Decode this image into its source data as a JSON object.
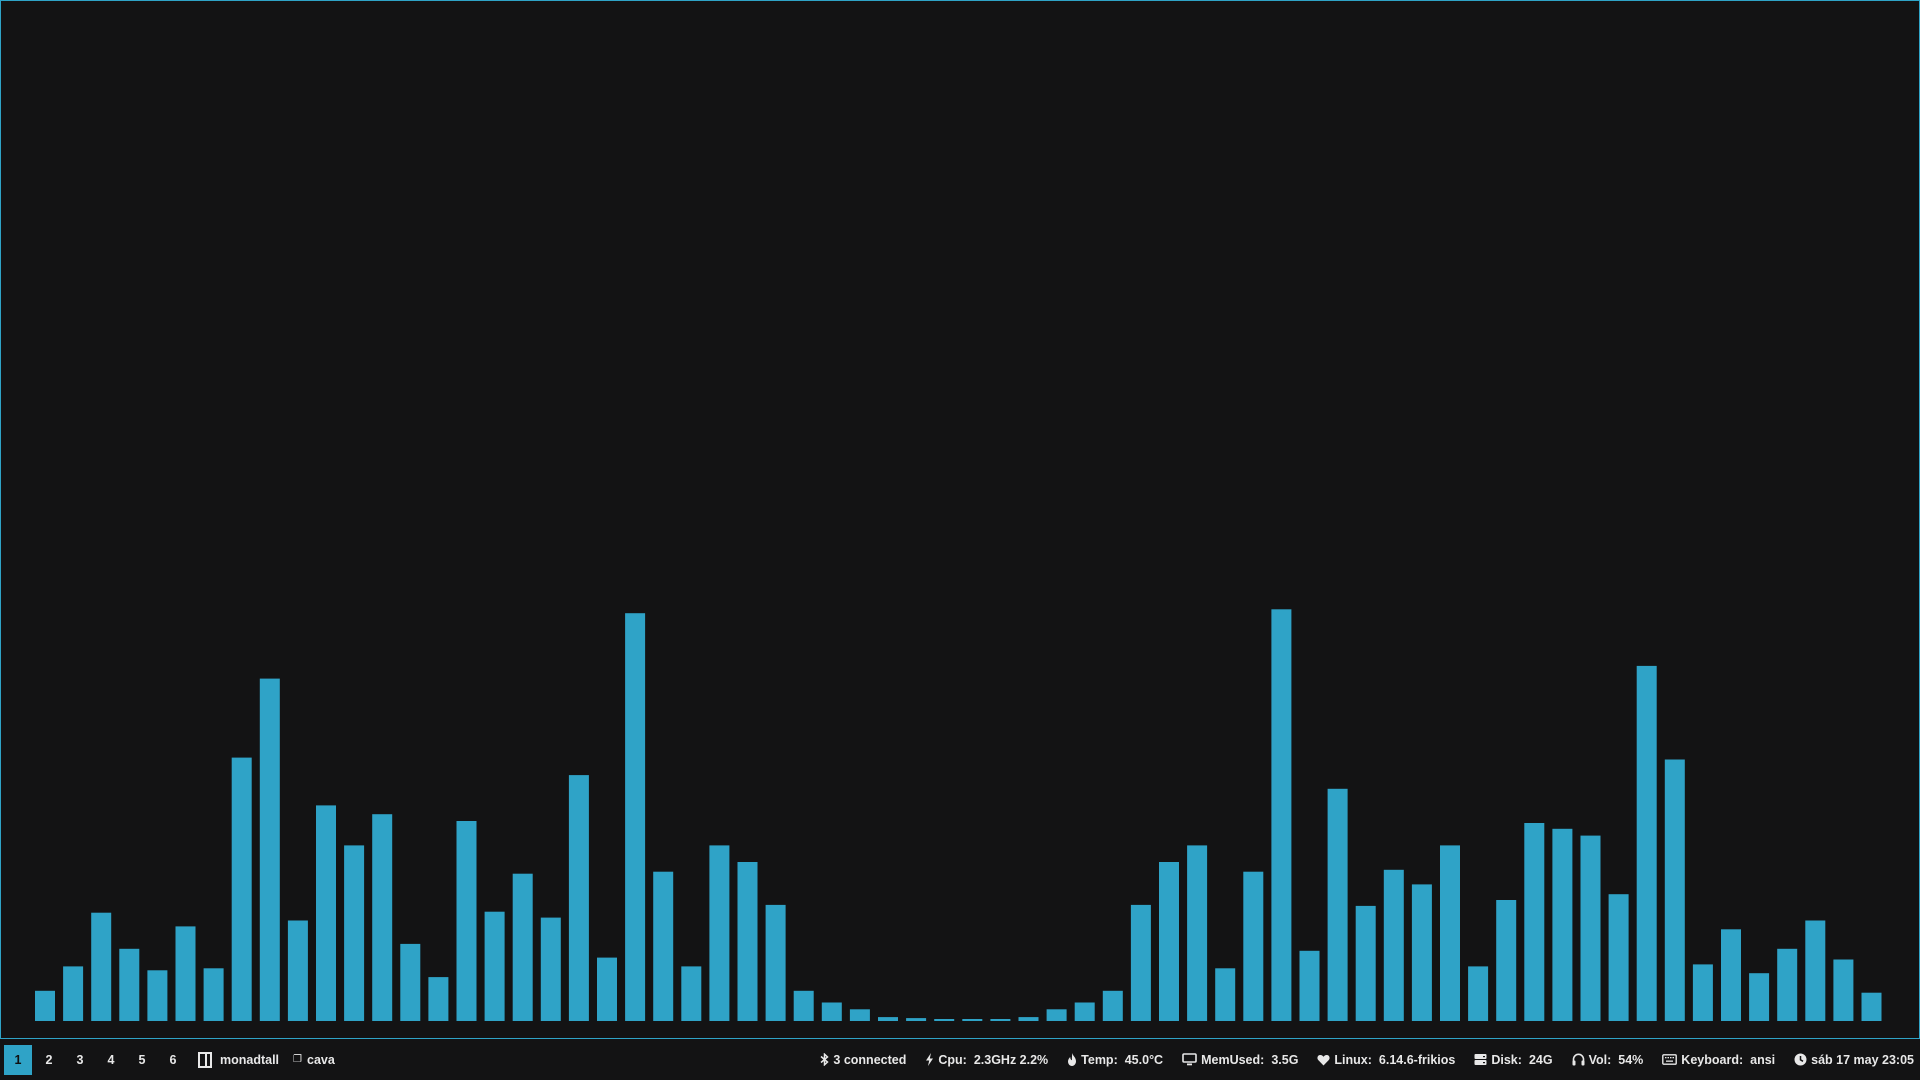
{
  "theme": {
    "accent": "#2fa3c7",
    "background": "#131314",
    "text": "#e8e8e8"
  },
  "window": {
    "app": "cava"
  },
  "chart_data": {
    "type": "bar",
    "values": [
      31,
      56,
      111,
      74,
      52,
      97,
      54,
      270,
      351,
      103,
      221,
      180,
      212,
      79,
      45,
      205,
      112,
      151,
      106,
      252,
      65,
      418,
      153,
      56,
      180,
      163,
      119,
      31,
      19,
      12,
      4,
      3,
      2,
      2,
      2,
      4,
      12,
      19,
      31,
      119,
      163,
      180,
      54,
      153,
      422,
      72,
      238,
      118,
      155,
      140,
      180,
      56,
      124,
      203,
      197,
      190,
      130,
      364,
      268,
      58,
      94,
      49,
      74,
      103,
      63,
      29
    ],
    "ylim": [
      0,
      1025
    ],
    "color": "#2fa3c7"
  },
  "statusbar": {
    "workspaces": [
      "1",
      "2",
      "3",
      "4",
      "5",
      "6"
    ],
    "active_workspace": "1",
    "layout": "monadtall",
    "window_title": "cava",
    "widgets": {
      "bluetooth": {
        "icon": "bluetooth-icon",
        "value": "3 connected"
      },
      "cpu": {
        "icon": "bolt-icon",
        "label": "Cpu:",
        "value": "2.3GHz 2.2%"
      },
      "temp": {
        "icon": "flame-icon",
        "label": "Temp:",
        "value": "45.0°C"
      },
      "memory": {
        "icon": "monitor-icon",
        "label": "MemUsed:",
        "value": "3.5G"
      },
      "kernel": {
        "icon": "heart-icon",
        "label": "Linux:",
        "value": "6.14.6-frikios"
      },
      "disk": {
        "icon": "disk-icon",
        "label": "Disk:",
        "value": "24G"
      },
      "volume": {
        "icon": "headphones-icon",
        "label": "Vol:",
        "value": "54%"
      },
      "keyboard": {
        "icon": "keyboard-icon",
        "label": "Keyboard:",
        "value": "ansi"
      },
      "clock": {
        "icon": "clock-icon",
        "value": "sáb 17 may 23:05"
      }
    }
  }
}
